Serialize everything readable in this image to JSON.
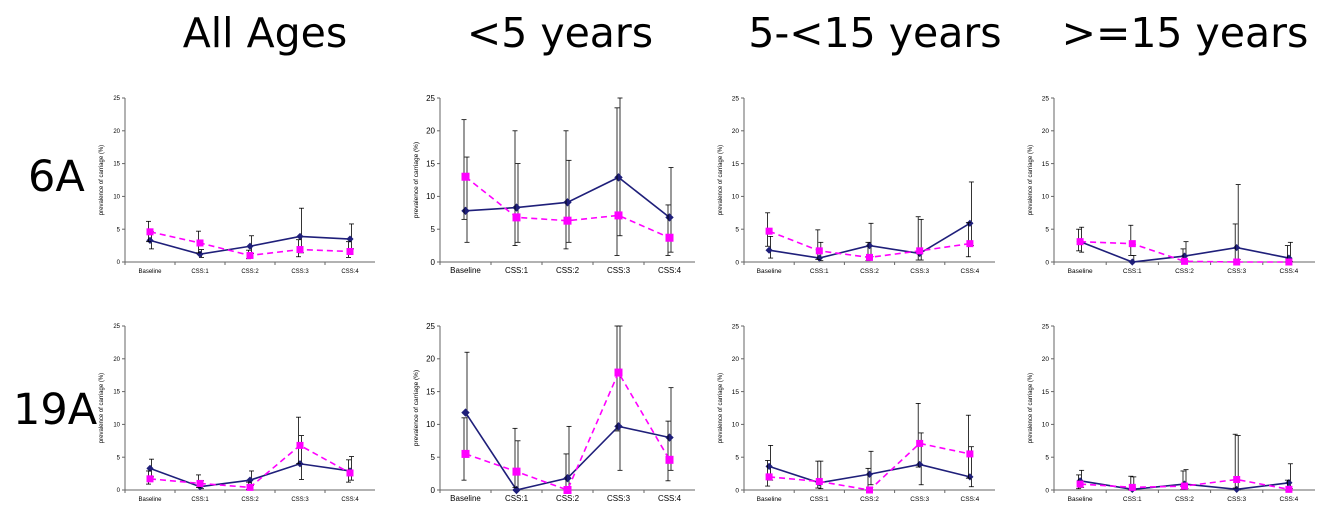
{
  "column_titles": [
    "All Ages",
    "<5 years",
    "5-<15 years",
    ">=15 years"
  ],
  "row_labels": [
    "6A",
    "19A"
  ],
  "colors": {
    "series_solid": "#1f1f7a",
    "series_dashed": "#ff00ff",
    "axis": "#666666",
    "error_bar": "#000000"
  },
  "chart_data": [
    {
      "type": "line",
      "row": "6A",
      "column": "All Ages",
      "categories": [
        "Baseline",
        "CSS:1",
        "CSS:2",
        "CSS:3",
        "CSS:4"
      ],
      "ylabel": "prevalence of carriage (%)",
      "ylim": [
        0,
        25
      ],
      "yticks": [
        0,
        5,
        10,
        15,
        20,
        25
      ],
      "series": [
        {
          "style": "solid",
          "marker": "diamond",
          "values": [
            3.3,
            1.2,
            2.4,
            3.9,
            3.5
          ],
          "err_low": [
            2.0,
            0.7,
            1.3,
            1.4,
            2.0
          ],
          "err_high": [
            4.6,
            1.9,
            4.0,
            8.2,
            5.8
          ]
        },
        {
          "style": "dashed",
          "marker": "square",
          "values": [
            4.6,
            2.9,
            1.0,
            1.9,
            1.6
          ],
          "err_low": [
            3.1,
            1.4,
            0.5,
            0.8,
            0.7
          ],
          "err_high": [
            6.2,
            4.7,
            1.8,
            3.4,
            3.1
          ]
        }
      ]
    },
    {
      "type": "line",
      "row": "6A",
      "column": "<5 years",
      "categories": [
        "Baseline",
        "CSS:1",
        "CSS:2",
        "CSS:3",
        "CSS:4"
      ],
      "ylabel": "prevalence of carriage (%)",
      "ylim": [
        0,
        25
      ],
      "yticks": [
        0,
        5,
        10,
        15,
        20,
        25
      ],
      "series": [
        {
          "style": "solid",
          "marker": "diamond",
          "values": [
            7.8,
            8.3,
            9.1,
            12.9,
            6.8
          ],
          "err_low": [
            3.0,
            3.0,
            3.0,
            4.0,
            1.5
          ],
          "err_high": [
            16.0,
            15.0,
            15.5,
            25.0,
            14.4
          ]
        },
        {
          "style": "dashed",
          "marker": "square",
          "values": [
            13.0,
            6.8,
            6.3,
            7.1,
            3.7
          ],
          "err_low": [
            6.5,
            2.5,
            2.0,
            1.0,
            1.0
          ],
          "err_high": [
            21.7,
            20.0,
            20.0,
            23.5,
            8.7
          ]
        }
      ]
    },
    {
      "type": "line",
      "row": "6A",
      "column": "5-<15 years",
      "categories": [
        "Baseline",
        "CSS:1",
        "CSS:2",
        "CSS:3",
        "CSS:4"
      ],
      "ylabel": "prevalence of carriage (%)",
      "ylim": [
        0,
        25
      ],
      "yticks": [
        0,
        5,
        10,
        15,
        20,
        25
      ],
      "series": [
        {
          "style": "solid",
          "marker": "diamond",
          "values": [
            1.8,
            0.6,
            2.5,
            1.3,
            5.9
          ],
          "err_low": [
            0.6,
            0.2,
            0.8,
            0.3,
            2.5
          ],
          "err_high": [
            3.9,
            3.0,
            5.9,
            6.5,
            12.2
          ]
        },
        {
          "style": "dashed",
          "marker": "square",
          "values": [
            4.7,
            1.7,
            0.7,
            1.7,
            2.8
          ],
          "err_low": [
            2.4,
            0.4,
            0.2,
            0.3,
            0.8
          ],
          "err_high": [
            7.5,
            4.9,
            3.0,
            6.9,
            6.0
          ]
        }
      ]
    },
    {
      "type": "line",
      "row": "6A",
      "column": ">=15 years",
      "categories": [
        "Baseline",
        "CSS:1",
        "CSS:2",
        "CSS:3",
        "CSS:4"
      ],
      "ylabel": "prevalence of carriage (%)",
      "ylim": [
        0,
        25
      ],
      "yticks": [
        0,
        5,
        10,
        15,
        20,
        25
      ],
      "series": [
        {
          "style": "solid",
          "marker": "diamond",
          "values": [
            3.1,
            0.0,
            0.9,
            2.2,
            0.6
          ],
          "err_low": [
            1.5,
            0.0,
            0.2,
            0.4,
            0.1
          ],
          "err_high": [
            5.3,
            1.0,
            3.1,
            11.8,
            3.0
          ]
        },
        {
          "style": "dashed",
          "marker": "square",
          "values": [
            3.1,
            2.8,
            0.1,
            0.0,
            0.0
          ],
          "err_low": [
            1.7,
            1.0,
            0.0,
            0.0,
            0.0
          ],
          "err_high": [
            5.0,
            5.6,
            2.0,
            5.8,
            2.5
          ]
        }
      ]
    },
    {
      "type": "line",
      "row": "19A",
      "column": "All Ages",
      "categories": [
        "Baseline",
        "CSS:1",
        "CSS:2",
        "CSS:3",
        "CSS:4"
      ],
      "ylabel": "prevalence of carriage (%)",
      "ylim": [
        0,
        25
      ],
      "yticks": [
        0,
        5,
        10,
        15,
        20,
        25
      ],
      "series": [
        {
          "style": "solid",
          "marker": "diamond",
          "values": [
            3.3,
            0.5,
            1.5,
            4.0,
            2.9
          ],
          "err_low": [
            2.0,
            0.2,
            0.7,
            1.6,
            1.5
          ],
          "err_high": [
            4.7,
            1.4,
            2.9,
            8.3,
            5.1
          ]
        },
        {
          "style": "dashed",
          "marker": "square",
          "values": [
            1.7,
            1.0,
            0.4,
            6.8,
            2.6
          ],
          "err_low": [
            0.9,
            0.4,
            0.1,
            4.0,
            1.2
          ],
          "err_high": [
            2.9,
            2.3,
            1.2,
            11.1,
            4.6
          ]
        }
      ]
    },
    {
      "type": "line",
      "row": "19A",
      "column": "<5 years",
      "categories": [
        "Baseline",
        "CSS:1",
        "CSS:2",
        "CSS:3",
        "CSS:4"
      ],
      "ylabel": "prevalence of carriage (%)",
      "ylim": [
        0,
        25
      ],
      "yticks": [
        0,
        5,
        10,
        15,
        20,
        25
      ],
      "series": [
        {
          "style": "solid",
          "marker": "diamond",
          "values": [
            11.8,
            0.0,
            1.8,
            9.7,
            8.0
          ],
          "err_low": [
            5.0,
            0.0,
            0.3,
            3.0,
            3.0
          ],
          "err_high": [
            21.0,
            7.5,
            9.7,
            25.0,
            15.6
          ]
        },
        {
          "style": "dashed",
          "marker": "square",
          "values": [
            5.5,
            2.8,
            0.0,
            17.9,
            4.6
          ],
          "err_low": [
            1.5,
            0.4,
            0.0,
            9.0,
            1.4
          ],
          "err_high": [
            11.0,
            9.4,
            5.5,
            25.0,
            10.5
          ]
        }
      ]
    },
    {
      "type": "line",
      "row": "19A",
      "column": "5-<15 years",
      "categories": [
        "Baseline",
        "CSS:1",
        "CSS:2",
        "CSS:3",
        "CSS:4"
      ],
      "ylabel": "prevalence of carriage (%)",
      "ylim": [
        0,
        25
      ],
      "yticks": [
        0,
        5,
        10,
        15,
        20,
        25
      ],
      "series": [
        {
          "style": "solid",
          "marker": "diamond",
          "values": [
            3.6,
            1.1,
            2.4,
            3.9,
            2.0
          ],
          "err_low": [
            1.5,
            0.2,
            0.8,
            0.8,
            0.5
          ],
          "err_high": [
            6.8,
            4.4,
            5.9,
            8.7,
            6.6
          ]
        },
        {
          "style": "dashed",
          "marker": "square",
          "values": [
            2.0,
            1.3,
            0.0,
            7.1,
            5.5
          ],
          "err_low": [
            0.6,
            0.3,
            0.0,
            3.5,
            1.8
          ],
          "err_high": [
            4.5,
            4.4,
            3.3,
            13.2,
            11.4
          ]
        }
      ]
    },
    {
      "type": "line",
      "row": "19A",
      "column": ">=15 years",
      "categories": [
        "Baseline",
        "CSS:1",
        "CSS:2",
        "CSS:3",
        "CSS:4"
      ],
      "ylabel": "prevalence of carriage (%)",
      "ylim": [
        0,
        25
      ],
      "yticks": [
        0,
        5,
        10,
        15,
        20,
        25
      ],
      "series": [
        {
          "style": "solid",
          "marker": "diamond",
          "values": [
            1.4,
            0.1,
            0.9,
            0.1,
            1.1
          ],
          "err_low": [
            0.4,
            0.0,
            0.2,
            0.0,
            0.2
          ],
          "err_high": [
            3.0,
            2.0,
            3.1,
            8.3,
            4.0
          ]
        },
        {
          "style": "dashed",
          "marker": "square",
          "values": [
            0.9,
            0.4,
            0.6,
            1.6,
            0.1
          ],
          "err_low": [
            0.2,
            0.0,
            0.1,
            0.3,
            0.0
          ],
          "err_high": [
            2.3,
            2.1,
            2.9,
            8.5,
            1.5
          ]
        }
      ]
    }
  ]
}
